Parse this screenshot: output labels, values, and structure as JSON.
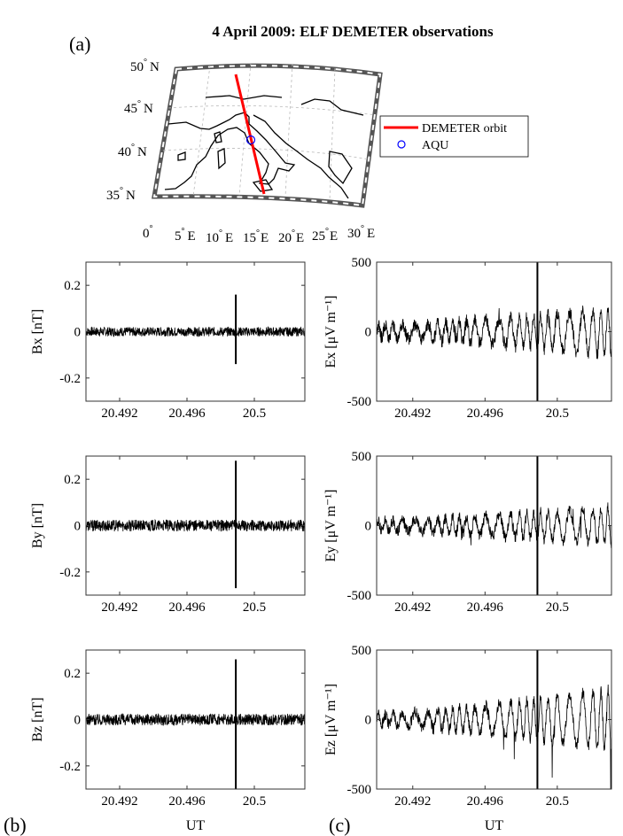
{
  "title": "4 April  2009: ELF DEMETER observations",
  "panel_labels": {
    "a": "(a)",
    "b": "(b)",
    "c": "(c)"
  },
  "map": {
    "lat_labels": [
      "50",
      "45",
      "40",
      "35"
    ],
    "lat_suffix": "N",
    "lon_labels": [
      "0",
      "5",
      "E",
      "10",
      "E",
      "15",
      "E",
      "20",
      "E",
      "25",
      "E",
      "30",
      "E"
    ],
    "degree_symbol": "°",
    "legend": [
      "DEMETER orbit",
      "AQU"
    ],
    "orbit_color": "#ff0000",
    "station_color": "#0000ff"
  },
  "chart_data": [
    {
      "type": "line",
      "ylabel": "Bx [nT]",
      "xlabel": "",
      "ylim": [
        -0.3,
        0.3
      ],
      "yticks": [
        "0.2",
        "0",
        "-0.2"
      ],
      "xlim": [
        20.49,
        20.503
      ],
      "xticks": [
        "20.492",
        "20.496",
        "20.5"
      ],
      "noise_amp": 0.02,
      "spike_x": 20.4989,
      "spike": [
        -0.14,
        0.16
      ],
      "growth": 0
    },
    {
      "type": "line",
      "ylabel": "By [nT]",
      "xlabel": "",
      "ylim": [
        -0.3,
        0.3
      ],
      "yticks": [
        "0.2",
        "0",
        "-0.2"
      ],
      "xlim": [
        20.49,
        20.503
      ],
      "xticks": [
        "20.492",
        "20.496",
        "20.5"
      ],
      "noise_amp": 0.025,
      "spike_x": 20.4989,
      "spike": [
        -0.27,
        0.28
      ],
      "growth": 0
    },
    {
      "type": "line",
      "ylabel": "Bz [nT]",
      "xlabel": "UT",
      "ylim": [
        -0.3,
        0.3
      ],
      "yticks": [
        "0.2",
        "0",
        "-0.2"
      ],
      "xlim": [
        20.49,
        20.503
      ],
      "xticks": [
        "20.492",
        "20.496",
        "20.5"
      ],
      "noise_amp": 0.025,
      "spike_x": 20.4989,
      "spike": [
        -0.3,
        0.26
      ],
      "growth": 0
    },
    {
      "type": "line",
      "ylabel": "Ex [μV m⁻¹]",
      "xlabel": "",
      "ylim": [
        -500,
        500
      ],
      "yticks": [
        "500",
        "0",
        "-500"
      ],
      "xlim": [
        20.49,
        20.503
      ],
      "xticks": [
        "20.492",
        "20.496",
        "20.5"
      ],
      "noise_amp": 60,
      "spike_x": 20.4989,
      "spike": [
        -500,
        500
      ],
      "growth": 180
    },
    {
      "type": "line",
      "ylabel": "Ey [μV m⁻¹]",
      "xlabel": "",
      "ylim": [
        -500,
        500
      ],
      "yticks": [
        "500",
        "0",
        "-500"
      ],
      "xlim": [
        20.49,
        20.503
      ],
      "xticks": [
        "20.492",
        "20.496",
        "20.5"
      ],
      "noise_amp": 50,
      "spike_x": 20.4989,
      "spike": [
        -500,
        500
      ],
      "growth": 140
    },
    {
      "type": "line",
      "ylabel": "Ez [μV m⁻¹]",
      "xlabel": "UT",
      "ylim": [
        -500,
        500
      ],
      "yticks": [
        "500",
        "0",
        "-500"
      ],
      "xlim": [
        20.49,
        20.503
      ],
      "xticks": [
        "20.492",
        "20.496",
        "20.5"
      ],
      "noise_amp": 50,
      "spike_x": 20.4989,
      "spike": [
        -500,
        500
      ],
      "growth": 260
    }
  ]
}
